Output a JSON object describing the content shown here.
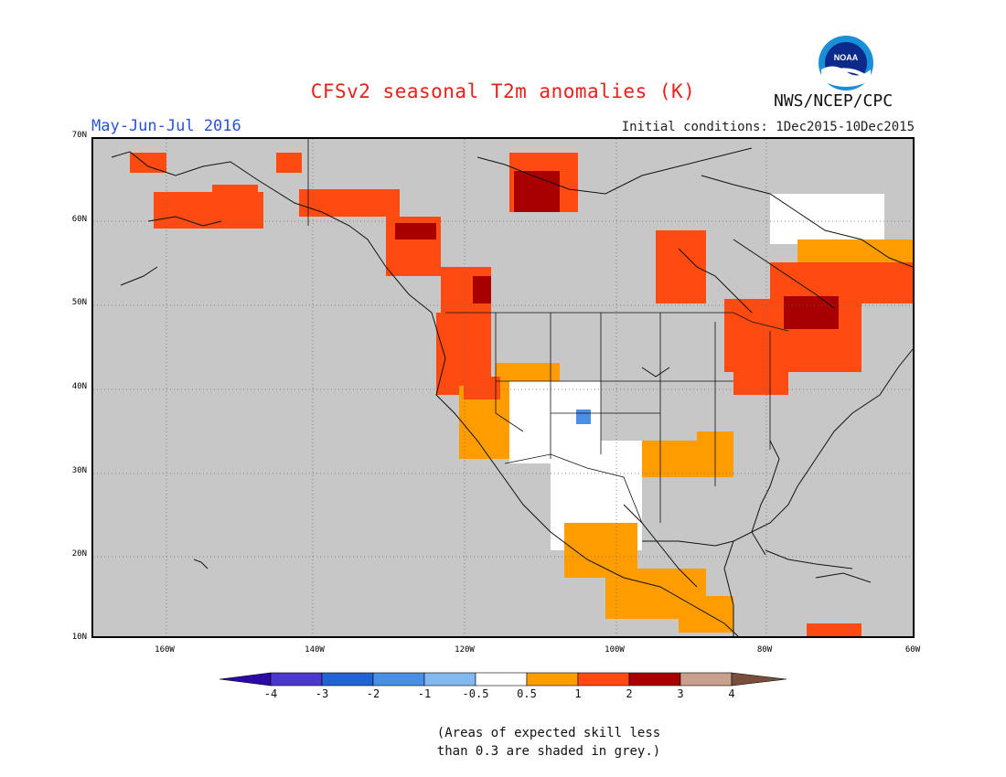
{
  "header": {
    "title": "CFSv2 seasonal T2m anomalies (K)",
    "organization": "NWS/NCEP/CPC",
    "logo_text": "NOAA",
    "period": "May-Jun-Jul 2016",
    "initial_conditions": "Initial conditions: 1Dec2015-10Dec2015"
  },
  "axes": {
    "lat_labels": [
      "70N",
      "60N",
      "50N",
      "40N",
      "30N",
      "20N",
      "10N"
    ],
    "lon_labels": [
      "160W",
      "140W",
      "120W",
      "100W",
      "80W",
      "60W"
    ]
  },
  "colorbar": {
    "labels": [
      "-4",
      "-3",
      "-2",
      "-1",
      "-0.5",
      "0.5",
      "1",
      "2",
      "3",
      "4"
    ],
    "colors": [
      "#2a0aa8",
      "#4b38cf",
      "#2162d4",
      "#4a8fe6",
      "#84b9ef",
      "#ffffff",
      "#ff9d00",
      "#ff4a12",
      "#a80000",
      "#c9a08e",
      "#7a4e3c"
    ]
  },
  "colors": {
    "skill_mask_grey": "#c7c7c7",
    "land_grey": "#c0c0c0",
    "white_neutral": "#ffffff",
    "warm_orange": "#ff9d00",
    "warm_red": "#ff4a12",
    "hot_darkred": "#a80000",
    "cool_blue": "#4a8fe6"
  },
  "footnote": {
    "line1": "(Areas of expected skill less",
    "line2": "than 0.3 are shaded in grey.)"
  }
}
